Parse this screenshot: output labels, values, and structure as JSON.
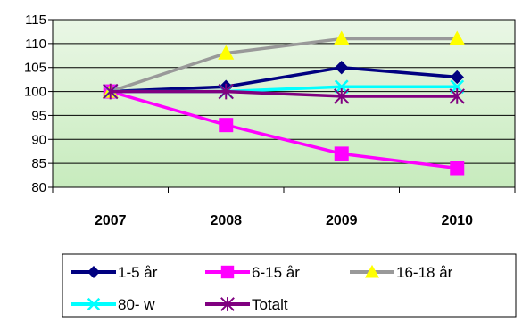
{
  "chart_data": {
    "type": "line",
    "title": "",
    "xlabel": "",
    "ylabel": "",
    "categories": [
      "2007",
      "2008",
      "2009",
      "2010"
    ],
    "ylim": [
      80,
      115
    ],
    "yticks": [
      80,
      85,
      90,
      95,
      100,
      105,
      110,
      115
    ],
    "grid": true,
    "legend_position": "bottom",
    "series": [
      {
        "name": "1-5 år",
        "values": [
          100,
          101,
          105,
          103
        ],
        "color": "#000080",
        "marker": "diamond"
      },
      {
        "name": "6-15 år",
        "values": [
          100,
          93,
          87,
          84
        ],
        "color": "#FF00FF",
        "marker": "square"
      },
      {
        "name": "16-18 år",
        "values": [
          100,
          108,
          111,
          111
        ],
        "color": "#999999",
        "marker": "triangle",
        "marker_color": "#FFFF00"
      },
      {
        "name": "80- w",
        "values": [
          100,
          100,
          101,
          101
        ],
        "color": "#00FFFF",
        "marker": "x"
      },
      {
        "name": "Totalt",
        "values": [
          100,
          100,
          99,
          99
        ],
        "color": "#800080",
        "marker": "star"
      }
    ]
  }
}
